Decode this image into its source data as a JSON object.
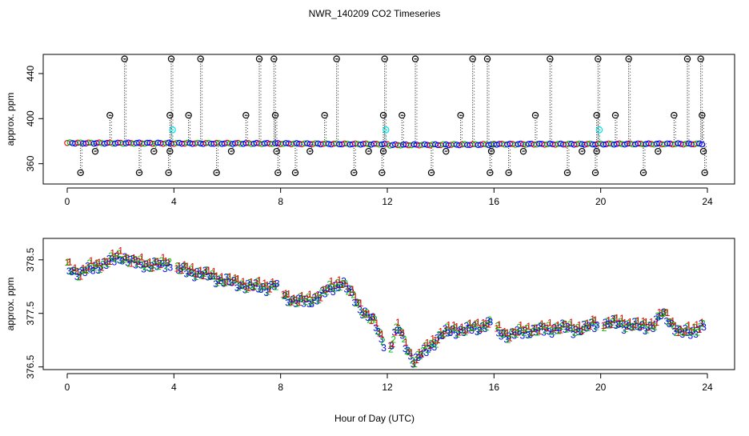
{
  "title": "NWR_140209  CO2 Timeseries",
  "xlabel": "Hour of Day (UTC)",
  "colors": {
    "axis": "#000000",
    "outlier_marker": "#000000",
    "flagged_marker": "#00e5e5",
    "main_marker": "#0000ff",
    "series1": "#e00000",
    "series2": "#00c000",
    "series3": "#0000ff"
  },
  "chart_data": [
    {
      "id": "top",
      "type": "scatter",
      "ylabel": "approx. ppm",
      "xlim": [
        0,
        24
      ],
      "ylim": [
        342,
        457
      ],
      "xticks": [
        0,
        4,
        8,
        12,
        16,
        20,
        24
      ],
      "yticks": [
        360,
        400,
        440
      ],
      "baseline_segments": [
        {
          "x": [
            0.0,
            7.9
          ],
          "y": [
            378.4,
            377.9
          ]
        },
        {
          "x": [
            8.0,
            12.05
          ],
          "y": [
            377.9,
            377.3
          ]
        },
        {
          "x": [
            12.1,
            16.0
          ],
          "y": [
            376.6,
            377.1
          ]
        },
        {
          "x": [
            16.0,
            19.85
          ],
          "y": [
            377.3,
            377.4
          ]
        },
        {
          "x": [
            19.9,
            23.8
          ],
          "y": [
            377.5,
            377.6
          ]
        }
      ],
      "high_outliers": [
        {
          "x": 1.6,
          "y": 403
        },
        {
          "x": 2.15,
          "y": 453
        },
        {
          "x": 3.85,
          "y": 403
        },
        {
          "x": 3.9,
          "y": 453
        },
        {
          "x": 4.55,
          "y": 403
        },
        {
          "x": 5.0,
          "y": 453
        },
        {
          "x": 6.7,
          "y": 403
        },
        {
          "x": 7.2,
          "y": 453
        },
        {
          "x": 7.75,
          "y": 453
        },
        {
          "x": 7.8,
          "y": 403
        },
        {
          "x": 9.65,
          "y": 403
        },
        {
          "x": 10.1,
          "y": 453
        },
        {
          "x": 11.85,
          "y": 403
        },
        {
          "x": 11.9,
          "y": 453
        },
        {
          "x": 12.55,
          "y": 403
        },
        {
          "x": 13.05,
          "y": 453
        },
        {
          "x": 14.75,
          "y": 403
        },
        {
          "x": 15.2,
          "y": 453
        },
        {
          "x": 15.75,
          "y": 453
        },
        {
          "x": 17.55,
          "y": 403
        },
        {
          "x": 18.1,
          "y": 453
        },
        {
          "x": 19.85,
          "y": 403
        },
        {
          "x": 19.9,
          "y": 453
        },
        {
          "x": 20.55,
          "y": 403
        },
        {
          "x": 21.05,
          "y": 453
        },
        {
          "x": 22.75,
          "y": 403
        },
        {
          "x": 23.25,
          "y": 453
        },
        {
          "x": 23.75,
          "y": 453
        },
        {
          "x": 23.8,
          "y": 403
        }
      ],
      "low_outliers": [
        {
          "x": 0.5,
          "y": 352
        },
        {
          "x": 1.05,
          "y": 371
        },
        {
          "x": 2.7,
          "y": 352
        },
        {
          "x": 3.25,
          "y": 371
        },
        {
          "x": 3.8,
          "y": 352
        },
        {
          "x": 3.85,
          "y": 371
        },
        {
          "x": 5.6,
          "y": 352
        },
        {
          "x": 6.15,
          "y": 371
        },
        {
          "x": 7.85,
          "y": 371
        },
        {
          "x": 7.9,
          "y": 352
        },
        {
          "x": 8.55,
          "y": 352
        },
        {
          "x": 9.1,
          "y": 371
        },
        {
          "x": 10.75,
          "y": 352
        },
        {
          "x": 11.3,
          "y": 371
        },
        {
          "x": 11.8,
          "y": 352
        },
        {
          "x": 11.85,
          "y": 371
        },
        {
          "x": 13.65,
          "y": 352
        },
        {
          "x": 14.2,
          "y": 371
        },
        {
          "x": 15.85,
          "y": 352
        },
        {
          "x": 15.9,
          "y": 371
        },
        {
          "x": 16.55,
          "y": 352
        },
        {
          "x": 17.1,
          "y": 371
        },
        {
          "x": 18.75,
          "y": 352
        },
        {
          "x": 19.3,
          "y": 371
        },
        {
          "x": 19.8,
          "y": 352
        },
        {
          "x": 19.85,
          "y": 371
        },
        {
          "x": 21.6,
          "y": 352
        },
        {
          "x": 22.15,
          "y": 371
        },
        {
          "x": 23.85,
          "y": 371
        },
        {
          "x": 23.9,
          "y": 352
        }
      ],
      "flagged_points": [
        {
          "x": 3.95,
          "y": 390
        },
        {
          "x": 11.95,
          "y": 390
        },
        {
          "x": 19.95,
          "y": 390
        }
      ]
    },
    {
      "id": "bottom",
      "type": "scatter",
      "ylabel": "approx. ppm",
      "xlim": [
        0,
        24
      ],
      "ylim": [
        376.45,
        378.9
      ],
      "xticks": [
        0,
        4,
        8,
        12,
        16,
        20,
        24
      ],
      "yticks": [
        376.5,
        377.5,
        378.5
      ],
      "point_labels": [
        "1",
        "2",
        "3"
      ],
      "trend": [
        {
          "x": 0.0,
          "y": 378.38
        },
        {
          "x": 0.5,
          "y": 378.25
        },
        {
          "x": 1.0,
          "y": 378.38
        },
        {
          "x": 1.5,
          "y": 378.45
        },
        {
          "x": 2.0,
          "y": 378.58
        },
        {
          "x": 2.5,
          "y": 378.45
        },
        {
          "x": 3.0,
          "y": 378.42
        },
        {
          "x": 3.5,
          "y": 378.4
        },
        {
          "x": 3.8,
          "y": 378.45
        },
        {
          "x": 4.0,
          "y": 378.35
        },
        {
          "x": 4.5,
          "y": 378.3
        },
        {
          "x": 5.0,
          "y": 378.25
        },
        {
          "x": 5.5,
          "y": 378.18
        },
        {
          "x": 6.0,
          "y": 378.1
        },
        {
          "x": 6.5,
          "y": 378.05
        },
        {
          "x": 7.0,
          "y": 378.0
        },
        {
          "x": 7.5,
          "y": 378.0
        },
        {
          "x": 7.8,
          "y": 378.05
        },
        {
          "x": 8.0,
          "y": 377.85
        },
        {
          "x": 8.5,
          "y": 377.75
        },
        {
          "x": 9.0,
          "y": 377.72
        },
        {
          "x": 9.5,
          "y": 377.85
        },
        {
          "x": 10.0,
          "y": 378.0
        },
        {
          "x": 10.3,
          "y": 378.1
        },
        {
          "x": 10.6,
          "y": 377.9
        },
        {
          "x": 11.0,
          "y": 377.6
        },
        {
          "x": 11.5,
          "y": 377.35
        },
        {
          "x": 11.8,
          "y": 377.0
        },
        {
          "x": 12.1,
          "y": 376.85
        },
        {
          "x": 12.4,
          "y": 377.25
        },
        {
          "x": 12.7,
          "y": 376.9
        },
        {
          "x": 13.0,
          "y": 376.6
        },
        {
          "x": 13.3,
          "y": 376.75
        },
        {
          "x": 13.7,
          "y": 376.95
        },
        {
          "x": 14.0,
          "y": 377.1
        },
        {
          "x": 14.5,
          "y": 377.2
        },
        {
          "x": 15.0,
          "y": 377.2
        },
        {
          "x": 15.5,
          "y": 377.25
        },
        {
          "x": 15.8,
          "y": 377.35
        },
        {
          "x": 16.0,
          "y": 377.2
        },
        {
          "x": 16.5,
          "y": 377.1
        },
        {
          "x": 17.0,
          "y": 377.15
        },
        {
          "x": 17.5,
          "y": 377.2
        },
        {
          "x": 18.0,
          "y": 377.2
        },
        {
          "x": 18.5,
          "y": 377.25
        },
        {
          "x": 19.0,
          "y": 377.2
        },
        {
          "x": 19.5,
          "y": 377.25
        },
        {
          "x": 19.8,
          "y": 377.3
        },
        {
          "x": 20.0,
          "y": 377.3
        },
        {
          "x": 20.5,
          "y": 377.32
        },
        {
          "x": 21.0,
          "y": 377.3
        },
        {
          "x": 21.5,
          "y": 377.25
        },
        {
          "x": 22.0,
          "y": 377.3
        },
        {
          "x": 22.3,
          "y": 377.5
        },
        {
          "x": 22.6,
          "y": 377.35
        },
        {
          "x": 23.0,
          "y": 377.15
        },
        {
          "x": 23.4,
          "y": 377.15
        },
        {
          "x": 23.8,
          "y": 377.3
        }
      ]
    }
  ]
}
